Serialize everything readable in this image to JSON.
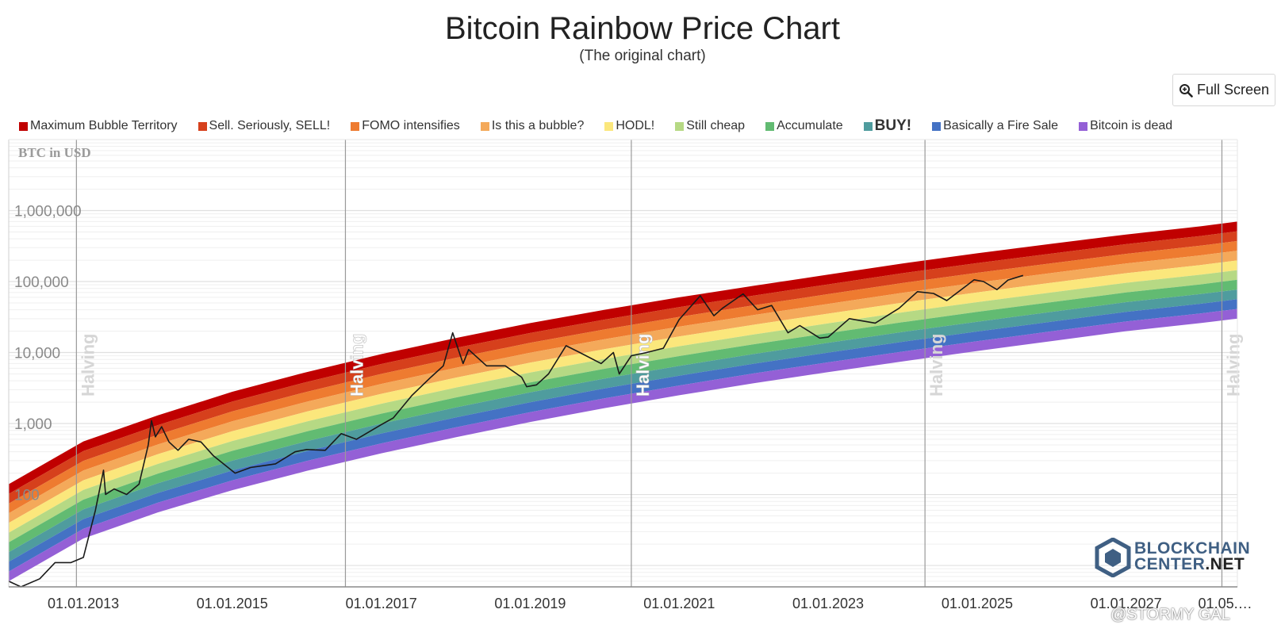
{
  "title": "Bitcoin Rainbow Price Chart",
  "subtitle": "(The original chart)",
  "full_screen_label": "Full Screen",
  "icons": {
    "full_screen": "zoom-in-icon"
  },
  "brand": {
    "line1": "BLOCKCHAIN",
    "line2a": "CENTER",
    "line2b": ".NET",
    "color": "#3f5f83"
  },
  "watermark": "@STORMY GAL",
  "legend": [
    {
      "label": "Maximum Bubble Territory",
      "color": "#c00000"
    },
    {
      "label": "Sell. Seriously, SELL!",
      "color": "#d6401c"
    },
    {
      "label": "FOMO intensifies",
      "color": "#ee7b30"
    },
    {
      "label": "Is this a bubble?",
      "color": "#f4a95a"
    },
    {
      "label": "HODL!",
      "color": "#fbe77c"
    },
    {
      "label": "Still cheap",
      "color": "#b6d984"
    },
    {
      "label": "Accumulate",
      "color": "#62bb72"
    },
    {
      "label": "BUY!",
      "color": "#4f9c9e"
    },
    {
      "label": "Basically a Fire Sale",
      "color": "#4472c4"
    },
    {
      "label": "Bitcoin is dead",
      "color": "#9460d6"
    }
  ],
  "chart_data": {
    "type": "area",
    "ylabel": "BTC in USD",
    "yscale": "log",
    "ylim": [
      5,
      10000000
    ],
    "xlim": [
      "2012-01-01",
      "2028-06-30"
    ],
    "y_ticks": [
      100,
      1000,
      10000,
      100000,
      1000000
    ],
    "y_tick_labels": [
      "100",
      "1,000",
      "10,000",
      "100,000",
      "1,000,000"
    ],
    "x_ticks": [
      "2013-01-01",
      "2015-01-01",
      "2017-01-01",
      "2019-01-01",
      "2021-01-01",
      "2023-01-01",
      "2025-01-01",
      "2027-01-01",
      "2028-05-01"
    ],
    "x_tick_labels": [
      "01.01.2013",
      "01.01.2015",
      "01.01.2017",
      "01.01.2019",
      "01.01.2021",
      "01.01.2023",
      "01.01.2025",
      "01.01.2027",
      "01.05.…"
    ],
    "halvings": [
      {
        "date": "2012-11-28",
        "label": "Halving"
      },
      {
        "date": "2016-07-09",
        "label": "Halving"
      },
      {
        "date": "2020-05-11",
        "label": "Halving"
      },
      {
        "date": "2024-04-20",
        "label": "Halving"
      },
      {
        "date": "2028-04-15",
        "label": "Halving"
      }
    ],
    "band_edges": {
      "dates": [
        "2012-01-01",
        "2013-01-01",
        "2014-01-01",
        "2015-01-01",
        "2016-01-01",
        "2017-01-01",
        "2018-01-01",
        "2019-01-01",
        "2020-01-01",
        "2021-01-01",
        "2022-01-01",
        "2023-01-01",
        "2024-01-01",
        "2025-01-01",
        "2026-01-01",
        "2027-01-01",
        "2028-01-01",
        "2028-06-30"
      ],
      "top": [
        140,
        560,
        1300,
        2800,
        5300,
        9500,
        16000,
        26000,
        40000,
        60000,
        87000,
        125000,
        180000,
        250000,
        340000,
        460000,
        600000,
        700000
      ],
      "bottom": [
        6,
        24,
        56,
        115,
        215,
        380,
        640,
        1050,
        1650,
        2500,
        3700,
        5300,
        7500,
        10500,
        14500,
        20000,
        26000,
        30000
      ]
    },
    "series": [
      {
        "name": "BTC price",
        "points": [
          [
            "2012-01-01",
            6
          ],
          [
            "2012-03-01",
            5
          ],
          [
            "2012-06-01",
            6.5
          ],
          [
            "2012-08-15",
            11
          ],
          [
            "2012-11-01",
            11
          ],
          [
            "2013-01-01",
            13
          ],
          [
            "2013-03-01",
            60
          ],
          [
            "2013-04-10",
            220
          ],
          [
            "2013-04-20",
            100
          ],
          [
            "2013-06-01",
            120
          ],
          [
            "2013-08-01",
            100
          ],
          [
            "2013-10-01",
            140
          ],
          [
            "2013-11-15",
            500
          ],
          [
            "2013-12-01",
            1100
          ],
          [
            "2013-12-20",
            650
          ],
          [
            "2014-01-20",
            900
          ],
          [
            "2014-02-25",
            550
          ],
          [
            "2014-04-10",
            420
          ],
          [
            "2014-06-01",
            600
          ],
          [
            "2014-08-01",
            550
          ],
          [
            "2014-10-01",
            350
          ],
          [
            "2015-01-15",
            200
          ],
          [
            "2015-04-01",
            240
          ],
          [
            "2015-08-01",
            270
          ],
          [
            "2015-11-05",
            400
          ],
          [
            "2016-01-01",
            430
          ],
          [
            "2016-04-01",
            420
          ],
          [
            "2016-06-18",
            720
          ],
          [
            "2016-09-01",
            600
          ],
          [
            "2016-12-31",
            960
          ],
          [
            "2017-03-01",
            1200
          ],
          [
            "2017-06-01",
            2500
          ],
          [
            "2017-09-01",
            4500
          ],
          [
            "2017-11-01",
            6500
          ],
          [
            "2017-12-17",
            19000
          ],
          [
            "2018-02-06",
            7000
          ],
          [
            "2018-03-05",
            11000
          ],
          [
            "2018-06-01",
            6500
          ],
          [
            "2018-09-01",
            6500
          ],
          [
            "2018-11-20",
            4500
          ],
          [
            "2018-12-15",
            3300
          ],
          [
            "2019-02-01",
            3500
          ],
          [
            "2019-04-01",
            5000
          ],
          [
            "2019-06-26",
            12500
          ],
          [
            "2019-09-01",
            10000
          ],
          [
            "2019-12-15",
            7000
          ],
          [
            "2020-02-13",
            10000
          ],
          [
            "2020-03-13",
            5000
          ],
          [
            "2020-05-11",
            9000
          ],
          [
            "2020-07-25",
            10000
          ],
          [
            "2020-10-15",
            11500
          ],
          [
            "2020-12-31",
            29000
          ],
          [
            "2021-04-14",
            63000
          ],
          [
            "2021-06-20",
            33000
          ],
          [
            "2021-08-01",
            42000
          ],
          [
            "2021-11-10",
            67000
          ],
          [
            "2022-01-20",
            40000
          ],
          [
            "2022-03-30",
            46000
          ],
          [
            "2022-06-18",
            19000
          ],
          [
            "2022-08-15",
            24000
          ],
          [
            "2022-11-21",
            16000
          ],
          [
            "2023-01-01",
            16500
          ],
          [
            "2023-04-15",
            30000
          ],
          [
            "2023-08-20",
            26000
          ],
          [
            "2023-12-15",
            42000
          ],
          [
            "2024-03-14",
            72000
          ],
          [
            "2024-06-01",
            68000
          ],
          [
            "2024-08-05",
            54000
          ],
          [
            "2024-11-15",
            90000
          ],
          [
            "2024-12-17",
            106000
          ],
          [
            "2025-02-01",
            100000
          ],
          [
            "2025-04-08",
            77000
          ],
          [
            "2025-06-01",
            105000
          ],
          [
            "2025-08-14",
            122000
          ]
        ]
      }
    ],
    "grid": true,
    "legend_position": "top"
  }
}
